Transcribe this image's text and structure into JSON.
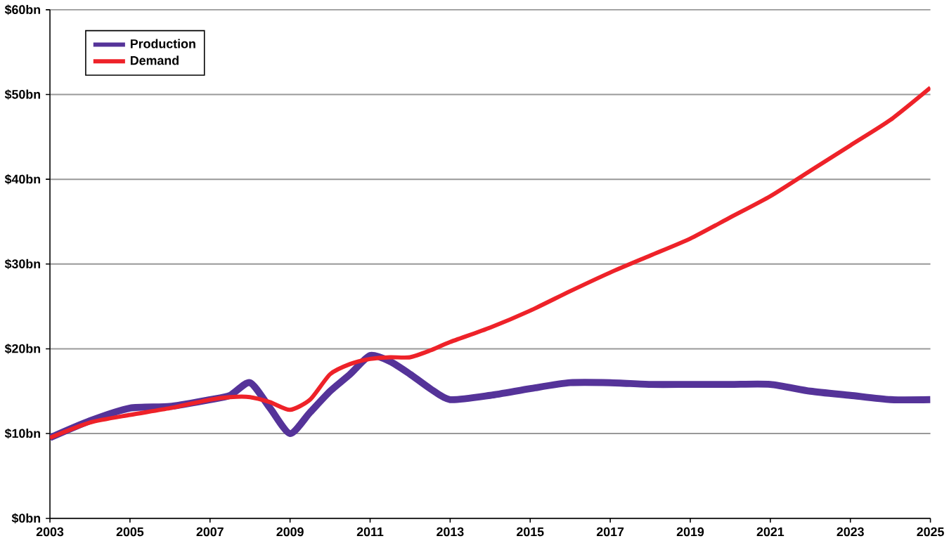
{
  "chart_data": {
    "type": "line",
    "x": [
      2003,
      2004,
      2005,
      2006,
      2007,
      2007.5,
      2008,
      2008.5,
      2009,
      2009.5,
      2010,
      2010.5,
      2011,
      2011.5,
      2012,
      2012.5,
      2013,
      2014,
      2015,
      2016,
      2017,
      2018,
      2019,
      2020,
      2021,
      2022,
      2023,
      2024,
      2025
    ],
    "series": [
      {
        "name": "Production",
        "color": "#553399",
        "values": [
          9.5,
          11.5,
          13,
          13.2,
          14,
          14.5,
          16,
          13,
          10,
          12.5,
          15,
          17,
          19.2,
          18.5,
          17,
          15.3,
          14,
          14.5,
          15.3,
          16,
          16,
          15.8,
          15.8,
          15.8,
          15.8,
          15,
          14.5,
          14,
          14
        ]
      },
      {
        "name": "Demand",
        "color": "#ee2229",
        "values": [
          9.5,
          11.3,
          12.2,
          13,
          14,
          14.3,
          14.3,
          13.7,
          12.8,
          14,
          17,
          18.2,
          18.8,
          19,
          19,
          19.8,
          20.8,
          22.5,
          24.5,
          26.8,
          29,
          31,
          33,
          35.5,
          38,
          41,
          44,
          47,
          50.8
        ]
      }
    ],
    "xlim": [
      2003,
      2025
    ],
    "xticks": [
      2003,
      2005,
      2007,
      2009,
      2011,
      2013,
      2015,
      2017,
      2019,
      2021,
      2023,
      2025
    ],
    "ylim": [
      0,
      60
    ],
    "yticks": [
      {
        "value": 0,
        "label": "$0bn"
      },
      {
        "value": 10,
        "label": "$10bn"
      },
      {
        "value": 20,
        "label": "$20bn"
      },
      {
        "value": 30,
        "label": "$30bn"
      },
      {
        "value": 40,
        "label": "$40bn"
      },
      {
        "value": 50,
        "label": "$50bn"
      },
      {
        "value": 60,
        "label": "$60bn"
      }
    ],
    "grid": "y",
    "legend": "top left",
    "marker": "none",
    "line_style": "solid"
  }
}
